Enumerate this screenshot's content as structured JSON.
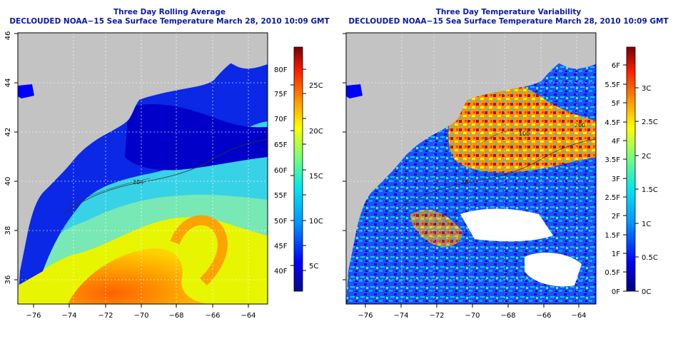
{
  "colors": {
    "title": "#0a1aa8",
    "land": "#c3c3c3",
    "grid": "#ffffff",
    "frame": "#000000"
  },
  "axes": {
    "lon_ticks": [
      "−76",
      "−74",
      "−72",
      "−70",
      "−68",
      "−66",
      "−64"
    ],
    "lat_ticks": [
      "36",
      "38",
      "40",
      "42",
      "44",
      "46"
    ],
    "lon_range": [
      -77,
      -63
    ],
    "lat_range": [
      35,
      46
    ]
  },
  "left_map": {
    "title_line1": "Three Day Rolling Average",
    "title_line2": "DECLOUDED NOAA−15 Sea Surface Temperature March 28, 2010 10:09 GMT",
    "contour_label": "200",
    "colorbar": {
      "gradient": [
        "#0a0a8a",
        "#0000ff",
        "#0096ff",
        "#00e6f0",
        "#78ff78",
        "#ffff00",
        "#ff9600",
        "#ff1e00",
        "#7a0000"
      ],
      "labels_f": [
        "80F",
        "75F",
        "70F",
        "65F",
        "60F",
        "55F",
        "50F",
        "45F",
        "40F"
      ],
      "labels_c": [
        "25C",
        "20C",
        "15C",
        "10C",
        "5C"
      ]
    }
  },
  "right_map": {
    "title_line1": "Three Day Temperature Variability",
    "title_line2": "DECLOUDED NOAA−15 Sea Surface Temperature March 28, 2010 10:09 GMT",
    "contour_labels": [
      "200",
      "100",
      "200"
    ],
    "colorbar": {
      "gradient": [
        "#00007a",
        "#0000ff",
        "#0096ff",
        "#00e6f0",
        "#78ff78",
        "#ffff00",
        "#ff9600",
        "#ff1e00",
        "#7a0000"
      ],
      "labels_f": [
        "6F",
        "5.5F",
        "5F",
        "4.5F",
        "4F",
        "3.5F",
        "3F",
        "2.5F",
        "2F",
        "1.5F",
        "1F",
        "0.5F",
        "0F"
      ],
      "labels_c": [
        "3C",
        "2.5C",
        "2C",
        "1.5C",
        "1C",
        "0.5C",
        "0C"
      ]
    }
  }
}
